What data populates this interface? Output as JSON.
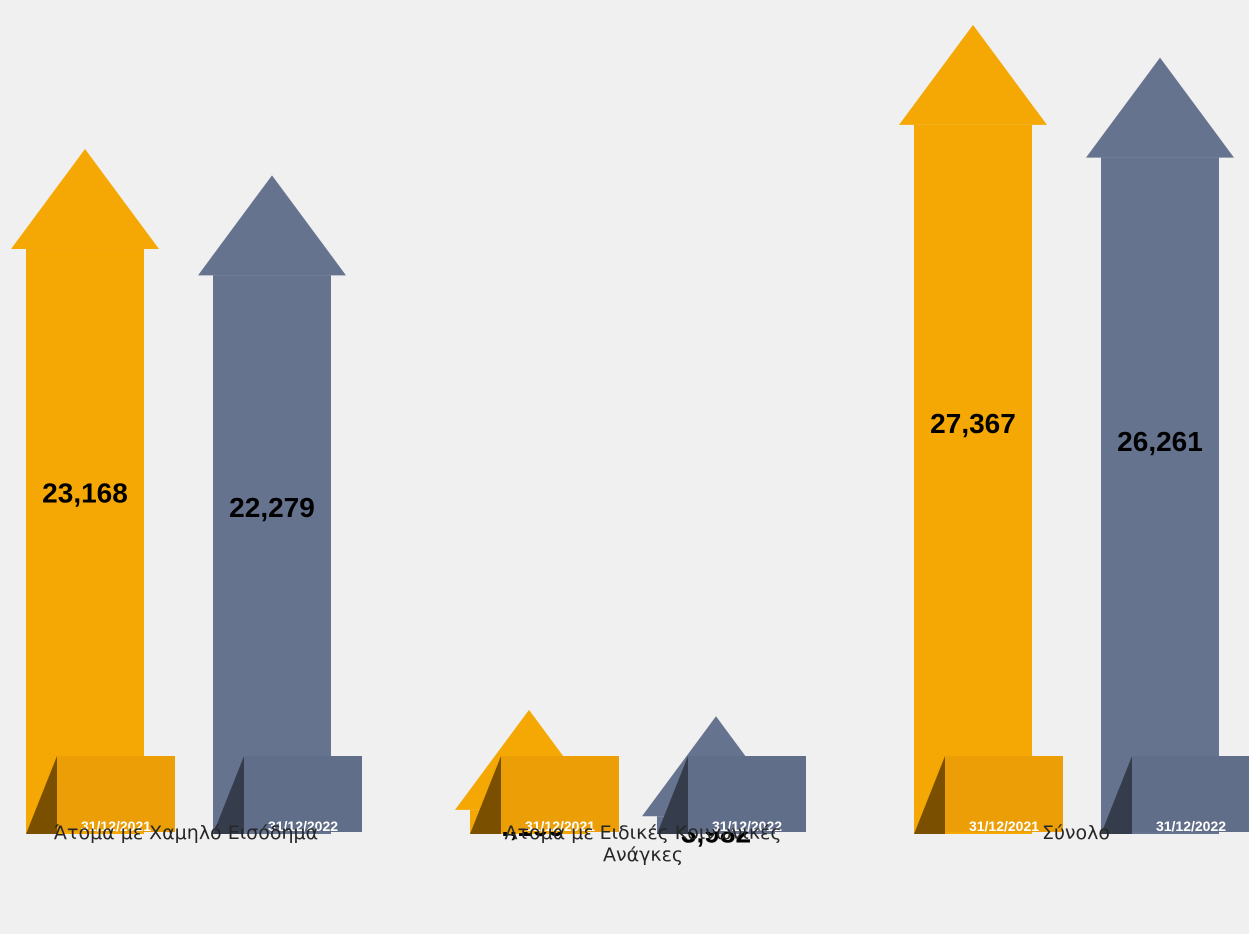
{
  "colors": {
    "series_2021": "#f5a804",
    "series_2021_box": "#eb9e06",
    "series_2021_fold": "#7a5000",
    "series_2022": "#66738f",
    "series_2022_box": "#616e8a",
    "series_2022_fold": "#353d4d",
    "background": "#eff0ef"
  },
  "chart_data": {
    "type": "bar",
    "style": "arrow-bars",
    "categories": [
      "Άτομα με Χαμηλό Εισόδημα",
      "Ατομα με Ειδικές Κοινωνικές Ανάγκες",
      "Σύνολο"
    ],
    "series": [
      {
        "name": "31/12/2021",
        "values": [
          23168,
          4199,
          27367
        ],
        "value_labels": [
          "23,168",
          "4,199",
          "27,367"
        ]
      },
      {
        "name": "31/12/2022",
        "values": [
          22279,
          3982,
          26261
        ],
        "value_labels": [
          "22,279",
          "3,982",
          "26,261"
        ]
      }
    ],
    "title": "",
    "xlabel": "",
    "ylabel": "",
    "grid": false
  }
}
